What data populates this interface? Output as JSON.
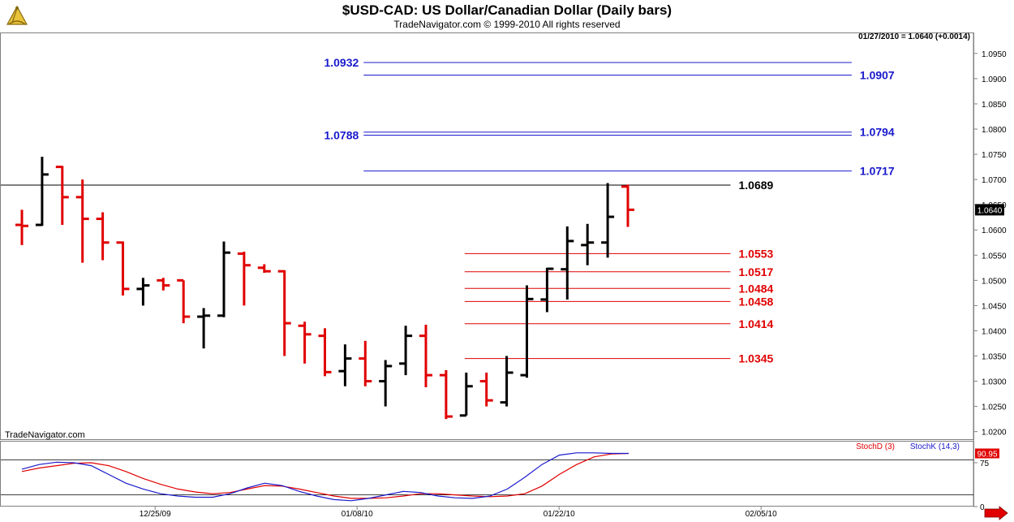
{
  "header": {
    "title": "$USD-CAD:  US Dollar/Canadian Dollar  (Daily bars)",
    "subtitle": "TradeNavigator.com © 1999-2010 All rights reserved",
    "quote": "01/27/2010 = 1.0640 (+0.0014)",
    "watermark": "TradeNavigator.com",
    "logo_icon": "sextant-logo-icon"
  },
  "colors": {
    "up_bar": "#000000",
    "down_bar": "#e00000",
    "blue_level": "#1a1acc",
    "red_level": "#e00000",
    "stoch_d": "#e00000",
    "stoch_k": "#1a1acc"
  },
  "chart_data": [
    {
      "type": "ohlc",
      "title": "$USD-CAD:  US Dollar/Canadian Dollar  (Daily bars)",
      "ylim": [
        1.0185,
        1.099
      ],
      "yticks": [
        "1.0950",
        "1.0900",
        "1.0850",
        "1.0800",
        "1.0750",
        "1.0700",
        "1.0650",
        "1.0600",
        "1.0550",
        "1.0500",
        "1.0450",
        "1.0400",
        "1.0350",
        "1.0300",
        "1.0250",
        "1.0200"
      ],
      "xticks": [
        {
          "label": "12/25/09",
          "index": 8
        },
        {
          "label": "01/08/10",
          "index": 18
        },
        {
          "label": "01/22/10",
          "index": 28
        },
        {
          "label": "02/05/10",
          "index": 38
        }
      ],
      "bars": [
        {
          "o": 1.061,
          "h": 1.064,
          "l": 1.057,
          "c": 1.0608
        },
        {
          "o": 1.061,
          "h": 1.0745,
          "l": 1.0608,
          "c": 1.071
        },
        {
          "o": 1.0725,
          "h": 1.0727,
          "l": 1.061,
          "c": 1.0665
        },
        {
          "o": 1.0665,
          "h": 1.07,
          "l": 1.0535,
          "c": 1.0622
        },
        {
          "o": 1.0622,
          "h": 1.0635,
          "l": 1.054,
          "c": 1.0575
        },
        {
          "o": 1.0575,
          "h": 1.0577,
          "l": 1.047,
          "c": 1.0483
        },
        {
          "o": 1.0483,
          "h": 1.0505,
          "l": 1.045,
          "c": 1.049
        },
        {
          "o": 1.05,
          "h": 1.0505,
          "l": 1.048,
          "c": 1.049
        },
        {
          "o": 1.05,
          "h": 1.05,
          "l": 1.0415,
          "c": 1.0428
        },
        {
          "o": 1.0428,
          "h": 1.0445,
          "l": 1.0365,
          "c": 1.043
        },
        {
          "o": 1.043,
          "h": 1.0577,
          "l": 1.0427,
          "c": 1.0555
        },
        {
          "o": 1.0553,
          "h": 1.0557,
          "l": 1.045,
          "c": 1.053
        },
        {
          "o": 1.0525,
          "h": 1.0532,
          "l": 1.0515,
          "c": 1.0518
        },
        {
          "o": 1.0518,
          "h": 1.052,
          "l": 1.035,
          "c": 1.0415
        },
        {
          "o": 1.041,
          "h": 1.0418,
          "l": 1.0335,
          "c": 1.0393
        },
        {
          "o": 1.039,
          "h": 1.0405,
          "l": 1.031,
          "c": 1.0318
        },
        {
          "o": 1.032,
          "h": 1.0373,
          "l": 1.029,
          "c": 1.0345
        },
        {
          "o": 1.0345,
          "h": 1.038,
          "l": 1.029,
          "c": 1.03
        },
        {
          "o": 1.03,
          "h": 1.0342,
          "l": 1.025,
          "c": 1.033
        },
        {
          "o": 1.0335,
          "h": 1.041,
          "l": 1.0312,
          "c": 1.039
        },
        {
          "o": 1.039,
          "h": 1.0412,
          "l": 1.0288,
          "c": 1.0312
        },
        {
          "o": 1.0312,
          "h": 1.0322,
          "l": 1.0225,
          "c": 1.023
        },
        {
          "o": 1.0232,
          "h": 1.0317,
          "l": 1.0232,
          "c": 1.029
        },
        {
          "o": 1.03,
          "h": 1.0317,
          "l": 1.025,
          "c": 1.0262
        },
        {
          "o": 1.0258,
          "h": 1.035,
          "l": 1.025,
          "c": 1.0317
        },
        {
          "o": 1.0312,
          "h": 1.049,
          "l": 1.0307,
          "c": 1.0463
        },
        {
          "o": 1.0462,
          "h": 1.0525,
          "l": 1.0437,
          "c": 1.0523
        },
        {
          "o": 1.0522,
          "h": 1.0607,
          "l": 1.0462,
          "c": 1.0578
        },
        {
          "o": 1.057,
          "h": 1.0612,
          "l": 1.053,
          "c": 1.0575
        },
        {
          "o": 1.0575,
          "h": 1.0693,
          "l": 1.0545,
          "c": 1.0626
        },
        {
          "o": 1.0686,
          "h": 1.069,
          "l": 1.0606,
          "c": 1.064
        }
      ],
      "levels": [
        {
          "value": 1.0932,
          "label": "1.0932",
          "color": "#1a1acc",
          "from": 17,
          "to": 41,
          "label_side": "left"
        },
        {
          "value": 1.0907,
          "label": "1.0907",
          "color": "#1a1acc",
          "from": 17,
          "to": 41,
          "label_side": "right"
        },
        {
          "value": 1.0788,
          "label": "1.0788",
          "color": "#1a1acc",
          "from": 17,
          "to": 41,
          "label_side": "left"
        },
        {
          "value": 1.0794,
          "label": "1.0794",
          "color": "#1a1acc",
          "from": 17,
          "to": 41,
          "label_side": "right"
        },
        {
          "value": 1.0717,
          "label": "1.0717",
          "color": "#1a1acc",
          "from": 17,
          "to": 41,
          "label_side": "right"
        },
        {
          "value": 1.0689,
          "label": "1.0689",
          "color": "#000000",
          "from": -1,
          "to": 35,
          "label_side": "right"
        },
        {
          "value": 1.0553,
          "label": "1.0553",
          "color": "#e00000",
          "from": 22,
          "to": 35,
          "label_side": "right"
        },
        {
          "value": 1.0517,
          "label": "1.0517",
          "color": "#e00000",
          "from": 22,
          "to": 35,
          "label_side": "right"
        },
        {
          "value": 1.0484,
          "label": "1.0484",
          "color": "#e00000",
          "from": 22,
          "to": 35,
          "label_side": "right"
        },
        {
          "value": 1.0458,
          "label": "1.0458",
          "color": "#e00000",
          "from": 22,
          "to": 35,
          "label_side": "right"
        },
        {
          "value": 1.0414,
          "label": "1.0414",
          "color": "#e00000",
          "from": 22,
          "to": 35,
          "label_side": "right"
        },
        {
          "value": 1.0345,
          "label": "1.0345",
          "color": "#e00000",
          "from": 22,
          "to": 35,
          "label_side": "right"
        }
      ],
      "last_price": "1.0640"
    },
    {
      "type": "line",
      "ylim": [
        0,
        100
      ],
      "yticks": [
        "75",
        "0"
      ],
      "reference_lines": [
        80,
        20
      ],
      "legend": [
        "StochD (3)",
        "StochK (14,3)"
      ],
      "last_value": "90.95",
      "series": [
        {
          "name": "StochD (3)",
          "color": "#e00000",
          "values": [
            60,
            66,
            70,
            74,
            75,
            70,
            60,
            48,
            38,
            30,
            25,
            22,
            24,
            30,
            36,
            35,
            30,
            24,
            18,
            14,
            14,
            15,
            18,
            22,
            22,
            20,
            18,
            17,
            18,
            22,
            35,
            55,
            72,
            85,
            90,
            91
          ]
        },
        {
          "name": "StochK (14,3)",
          "color": "#1a1acc",
          "values": [
            64,
            72,
            76,
            75,
            70,
            55,
            40,
            30,
            22,
            18,
            16,
            16,
            22,
            32,
            40,
            36,
            26,
            18,
            12,
            10,
            14,
            20,
            26,
            24,
            18,
            15,
            14,
            18,
            30,
            50,
            72,
            88,
            92,
            92,
            91,
            91
          ]
        }
      ]
    }
  ]
}
